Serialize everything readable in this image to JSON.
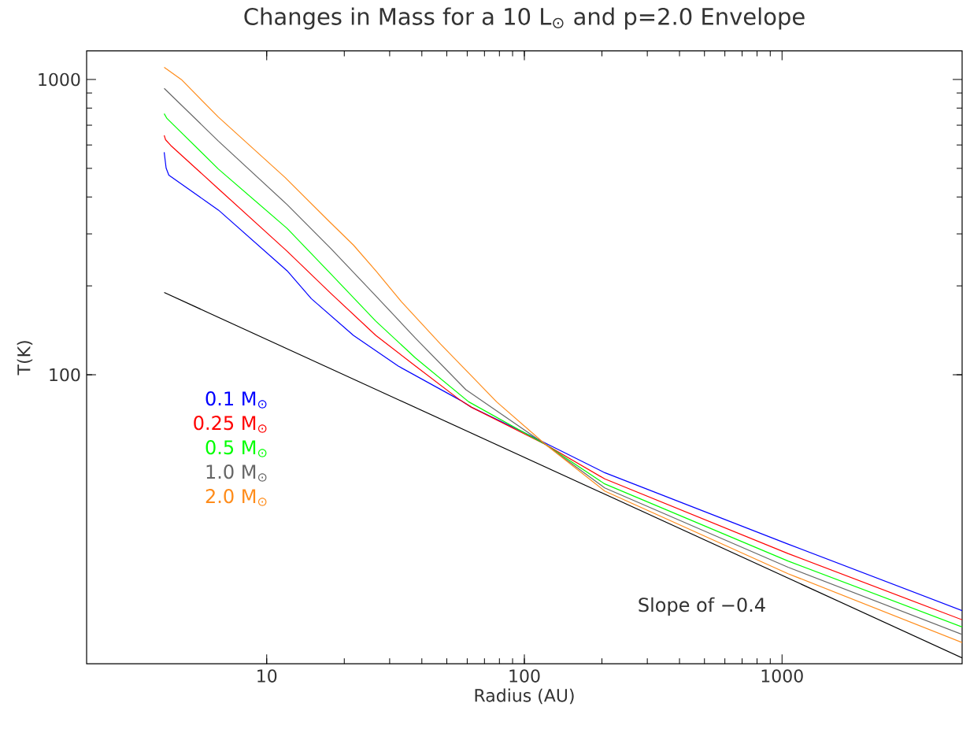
{
  "chart_data": {
    "type": "line",
    "title": "Changes in Mass for a 10 L$_{⊙}$ and p=2.0 Envelope",
    "xlabel": "Radius (AU)",
    "ylabel": "T(K)",
    "log": "xy",
    "xlim": [
      2,
      5000
    ],
    "ylim": [
      10.5,
      1250
    ],
    "xticks": [
      10,
      100,
      1000
    ],
    "yticks": [
      100,
      1000
    ],
    "legend": "left",
    "annotations": [
      "Slope of −0.4"
    ],
    "series": [
      {
        "name": "0.1 M$_{⊙}$",
        "color": "#0000ff",
        "x": [
          4,
          4.07,
          4.17,
          6.5,
          12,
          14.9,
          21.7,
          32.4,
          56.4,
          62.4,
          101,
          205,
          1055,
          5000
        ],
        "values": [
          567,
          501,
          474,
          361,
          225,
          181,
          136,
          107,
          82,
          77.6,
          63.4,
          46.6,
          26.7,
          15.9
        ]
      },
      {
        "name": "0.25 M$_{⊙}$",
        "color": "#ff0000",
        "x": [
          4,
          4.05,
          4.24,
          6.5,
          12,
          17.7,
          26.5,
          37.8,
          56.4,
          62.4,
          121,
          205,
          1055,
          5000
        ],
        "values": [
          647,
          625,
          598,
          426,
          262,
          189,
          136,
          107,
          82,
          77.6,
          58,
          44.4,
          24.8,
          14.8
        ]
      },
      {
        "name": "0.5 M$_{⊙}$",
        "color": "#00ff00",
        "x": [
          4,
          4.1,
          6.5,
          12,
          17.7,
          26.5,
          37.8,
          60.8,
          121,
          205,
          1055,
          5000
        ],
        "values": [
          766,
          738,
          497,
          313,
          220,
          152,
          114,
          81,
          58,
          42.7,
          23.4,
          14.0
        ]
      },
      {
        "name": "1.0 M$_{⊙}$",
        "color": "#666666",
        "x": [
          4,
          6.5,
          12,
          17.7,
          25.9,
          37.8,
          59.3,
          121,
          205,
          1055,
          5000
        ],
        "values": [
          933,
          618,
          377,
          268,
          189,
          133,
          89,
          58,
          41.4,
          22.3,
          13.2
        ]
      },
      {
        "name": "2.0 M$_{⊙}$",
        "color": "#ff8c1a",
        "x": [
          4,
          4.66,
          6.5,
          11.8,
          17.7,
          21.7,
          26.5,
          33.3,
          47.3,
          62.4,
          78,
          121,
          205,
          1055,
          5000
        ],
        "values": [
          1100,
          1000,
          745,
          465,
          327,
          275,
          225,
          177,
          127,
          99,
          81,
          58,
          40.4,
          21.2,
          12.4
        ]
      },
      {
        "color": "#000000",
        "x": [
          4,
          5000
        ],
        "values": [
          190,
          11
        ]
      }
    ]
  }
}
